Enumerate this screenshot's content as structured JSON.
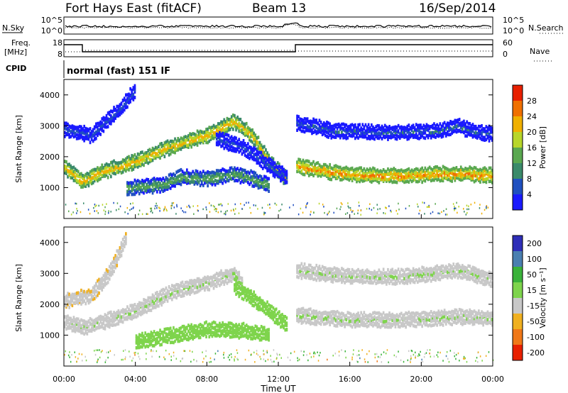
{
  "header": {
    "station": "Fort Hays East (fitACF)",
    "beam": "Beam 13",
    "date": "16/Sep/2014"
  },
  "noise_panel": {
    "left_label": "N.Sky",
    "right_label": "N.Search",
    "ticks_left": [
      "10^5",
      "10^0"
    ],
    "ticks_right": [
      "10^5",
      "10^0"
    ]
  },
  "freq_panel": {
    "left_label": "Freq.",
    "left_unit": "[MHz]",
    "right_label": "Nave",
    "ticks_left": [
      "18",
      "8"
    ],
    "ticks_right": [
      "60",
      "0"
    ]
  },
  "cpid": {
    "label": "CPID",
    "text": "normal (fast) 151 IF"
  },
  "colors": {
    "power_scale": [
      "#1a1aff",
      "#2050c0",
      "#3a8a6a",
      "#5aa850",
      "#b8d62a",
      "#f0b000",
      "#f07000",
      "#e82000"
    ],
    "velocity_scale": [
      "#2e2eb8",
      "#4a7fb0",
      "#3ab23a",
      "#7ed44c",
      "#c8c8c8",
      "#f0b020",
      "#f07818",
      "#e82000"
    ]
  },
  "chart_data": [
    {
      "type": "heatmap",
      "name": "power-panel",
      "ylabel": "Slant Range [km]",
      "xlabel": "",
      "ylim": [
        0,
        4500
      ],
      "y_ticks": [
        "4000",
        "3000",
        "2000",
        "1000"
      ],
      "colorbar": {
        "label": "Power [dB]",
        "range": [
          0,
          32
        ],
        "ticks": [
          "28",
          "24",
          "20",
          "16",
          "12",
          "8",
          "4"
        ]
      },
      "ridges": [
        {
          "points": [
            [
              0,
              1650
            ],
            [
              0.5,
              1450
            ],
            [
              1.0,
              1200
            ],
            [
              2,
              1500
            ],
            [
              4,
              1850
            ],
            [
              6,
              2350
            ],
            [
              8,
              2700
            ],
            [
              9.5,
              3150
            ],
            [
              10.5,
              2700
            ],
            [
              11.5,
              1800
            ],
            [
              12.5,
              1250
            ]
          ],
          "value": 22
        },
        {
          "points": [
            [
              3.5,
              1000
            ],
            [
              5.5,
              1100
            ],
            [
              6.5,
              1350
            ],
            [
              8,
              1300
            ],
            [
              9.5,
              1450
            ],
            [
              10.5,
              1300
            ],
            [
              11.5,
              1050
            ]
          ],
          "value": 14
        },
        {
          "points": [
            [
              13,
              1700
            ],
            [
              15,
              1500
            ],
            [
              17,
              1400
            ],
            [
              19,
              1400
            ],
            [
              21,
              1450
            ],
            [
              22.5,
              1450
            ],
            [
              24,
              1400
            ]
          ],
          "value": 24
        },
        {
          "points": [
            [
              13,
              3100
            ],
            [
              15,
              2850
            ],
            [
              17,
              2800
            ],
            [
              19,
              2800
            ],
            [
              21,
              2850
            ],
            [
              22,
              3000
            ],
            [
              23,
              2800
            ],
            [
              24,
              2750
            ]
          ],
          "value": 7
        },
        {
          "points": [
            [
              0,
              2900
            ],
            [
              1.5,
              2700
            ],
            [
              3,
              3500
            ],
            [
              4,
              4200
            ]
          ],
          "value": 6
        },
        {
          "points": [
            [
              8.5,
              2600
            ],
            [
              10,
              2300
            ],
            [
              11.5,
              1700
            ],
            [
              12.5,
              1300
            ]
          ],
          "value": 6
        }
      ]
    },
    {
      "type": "heatmap",
      "name": "velocity-panel",
      "ylabel": "Slant Range [km]",
      "xlabel": "Time UT",
      "xlim": [
        0,
        24
      ],
      "x_ticks": [
        "00:00",
        "04:00",
        "08:00",
        "12:00",
        "16:00",
        "20:00",
        "00:00"
      ],
      "ylim": [
        0,
        4500
      ],
      "y_ticks": [
        "4000",
        "3000",
        "2000",
        "1000"
      ],
      "colorbar": {
        "label": "Velocity [m s⁻¹]",
        "range": [
          -250,
          250
        ],
        "ticks": [
          "200",
          "100",
          "50",
          "15",
          "-15",
          "-50",
          "-100",
          "-200"
        ]
      },
      "ridges": [
        {
          "points": [
            [
              0,
              1450
            ],
            [
              1,
              1250
            ],
            [
              2,
              1400
            ],
            [
              4,
              1800
            ],
            [
              6,
              2400
            ],
            [
              8,
              2700
            ],
            [
              9.5,
              3000
            ],
            [
              10,
              2600
            ]
          ],
          "value": 0
        },
        {
          "points": [
            [
              4,
              800
            ],
            [
              6,
              1000
            ],
            [
              8,
              1200
            ],
            [
              10,
              1150
            ],
            [
              11.5,
              1000
            ]
          ],
          "value": 35
        },
        {
          "points": [
            [
              9.5,
              2600
            ],
            [
              11,
              2000
            ],
            [
              12.5,
              1300
            ]
          ],
          "value": 35
        },
        {
          "points": [
            [
              13,
              1650
            ],
            [
              16,
              1500
            ],
            [
              19,
              1500
            ],
            [
              22,
              1600
            ],
            [
              24,
              1550
            ]
          ],
          "value": 0
        },
        {
          "points": [
            [
              13,
              3100
            ],
            [
              16,
              2900
            ],
            [
              19,
              2900
            ],
            [
              22,
              3100
            ],
            [
              24,
              2800
            ]
          ],
          "value": 0
        },
        {
          "points": [
            [
              0,
              2100
            ],
            [
              1.5,
              2300
            ],
            [
              2.5,
              3000
            ],
            [
              3.5,
              4200
            ]
          ],
          "value": -40
        }
      ]
    }
  ]
}
